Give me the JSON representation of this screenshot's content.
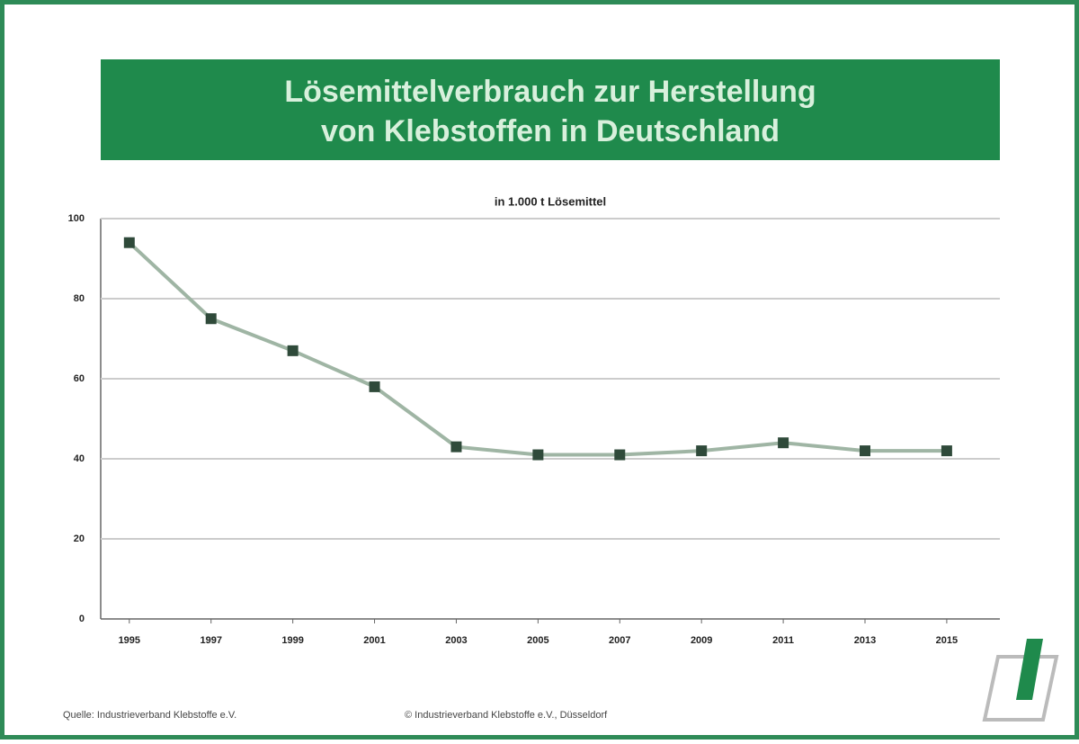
{
  "chart_data": {
    "type": "line",
    "title": "Lösemittelverbrauch zur Herstellung von Klebstoffen in Deutschland",
    "subtitle": "in 1.000 t Lösemittel",
    "categories": [
      "1995",
      "1997",
      "1999",
      "2001",
      "2003",
      "2005",
      "2007",
      "2009",
      "2011",
      "2013",
      "2015"
    ],
    "series": [
      {
        "color": "#9fb5a4",
        "values": [
          94,
          75,
          67,
          58,
          43,
          41,
          41,
          42,
          44,
          42,
          42
        ]
      }
    ],
    "ylim": [
      0,
      100
    ],
    "yticks": [
      0,
      20,
      40,
      60,
      80,
      100
    ],
    "grid": true,
    "source": "Quelle: Industrieverband Klebstoffe e.V.",
    "copyright": "© Industrieverband Klebstoffe e.V., Düsseldorf"
  }
}
